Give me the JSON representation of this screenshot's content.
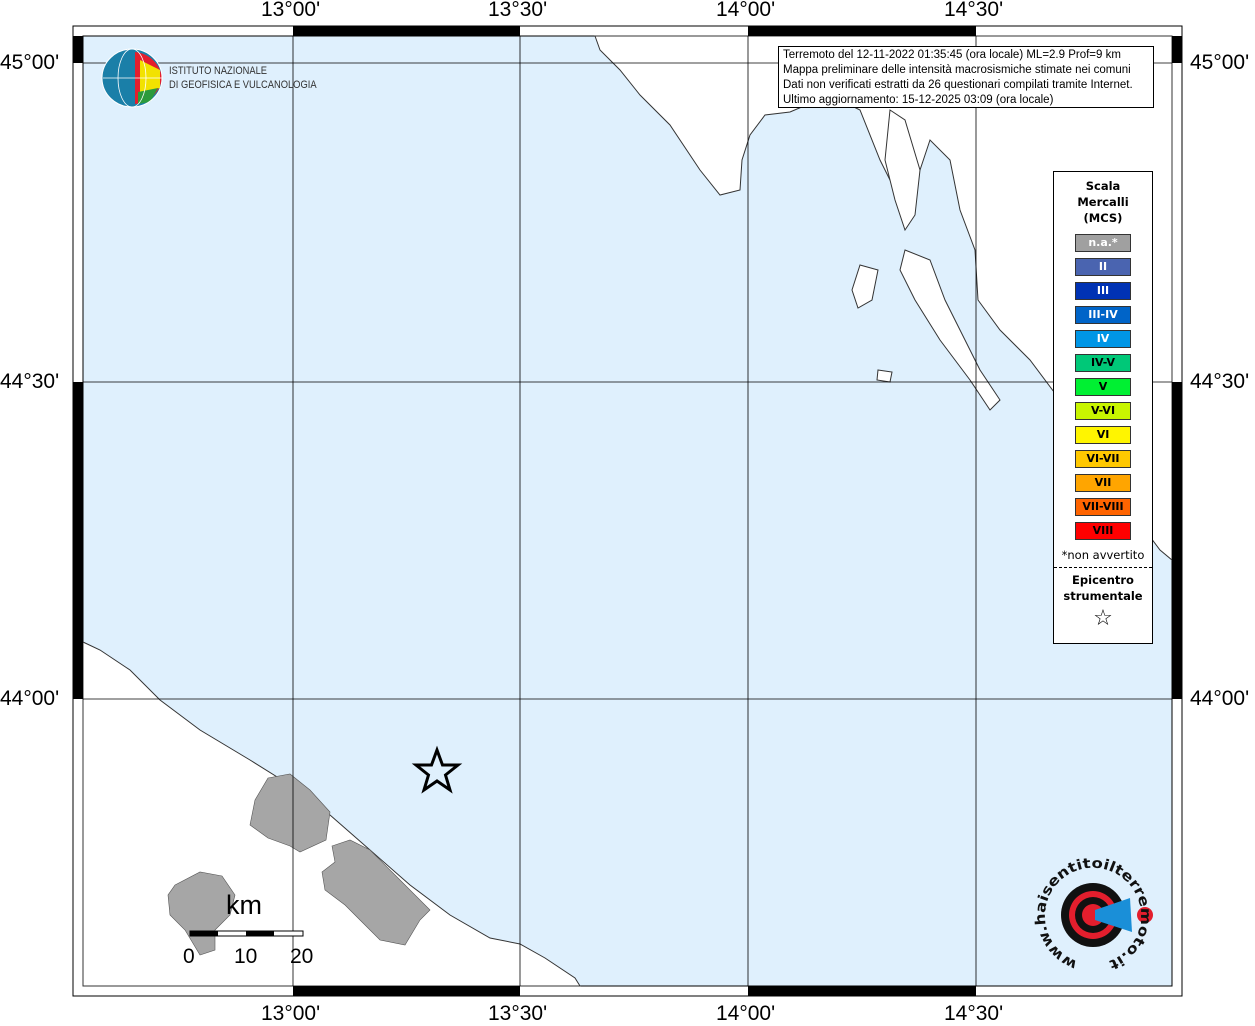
{
  "map": {
    "sea_color": "#dff0fd",
    "land_color": "#ffffff",
    "felt_area_color": "#a6a6a6",
    "lon_ticks": [
      "13°00'",
      "13°30'",
      "14°00'",
      "14°30'"
    ],
    "lat_ticks": [
      "45°00'",
      "44°30'",
      "44°00'"
    ],
    "epicenter_icon": "star-icon"
  },
  "logo": {
    "line1": "ISTITUTO NAZIONALE",
    "line2": "DI GEOFISICA E VULCANOLOGIA"
  },
  "info": {
    "line1": "Terremoto del 12-11-2022 01:35:45 (ora locale) ML=2.9 Prof=9 km",
    "line2": "Mappa preliminare delle intensità macrosismiche stimate nei comuni",
    "line3": "Dati non verificati estratti da 26 questionari compilati tramite Internet.",
    "line4": "Ultimo aggiornamento: 15-12-2025 03:09 (ora locale)"
  },
  "legend": {
    "title1": "Scala",
    "title2": "Mercalli",
    "title3": "(MCS)",
    "items": [
      {
        "label": "n.a.*",
        "color": "#a0a0a0",
        "text": "#fff"
      },
      {
        "label": "II",
        "color": "#4a64b0",
        "text": "#fff"
      },
      {
        "label": "III",
        "color": "#0032b4",
        "text": "#fff"
      },
      {
        "label": "III-IV",
        "color": "#0064c8",
        "text": "#fff"
      },
      {
        "label": "IV",
        "color": "#0096e6",
        "text": "#fff"
      },
      {
        "label": "IV-V",
        "color": "#00c878",
        "text": "#000"
      },
      {
        "label": "V",
        "color": "#00f032",
        "text": "#000"
      },
      {
        "label": "V-VI",
        "color": "#c8f500",
        "text": "#000"
      },
      {
        "label": "VI",
        "color": "#fff500",
        "text": "#000"
      },
      {
        "label": "VI-VII",
        "color": "#ffc800",
        "text": "#000"
      },
      {
        "label": "VII",
        "color": "#ffa500",
        "text": "#000"
      },
      {
        "label": "VII-VIII",
        "color": "#ff6400",
        "text": "#000"
      },
      {
        "label": "VIII",
        "color": "#ff0000",
        "text": "#000"
      }
    ],
    "note": "*non avvertito",
    "epi1": "Epicentro",
    "epi2": "strumentale"
  },
  "scale": {
    "unit": "km",
    "labels": [
      "0",
      "10",
      "20"
    ]
  },
  "brand": {
    "text": "www.haisentitoilterremoto.it"
  }
}
